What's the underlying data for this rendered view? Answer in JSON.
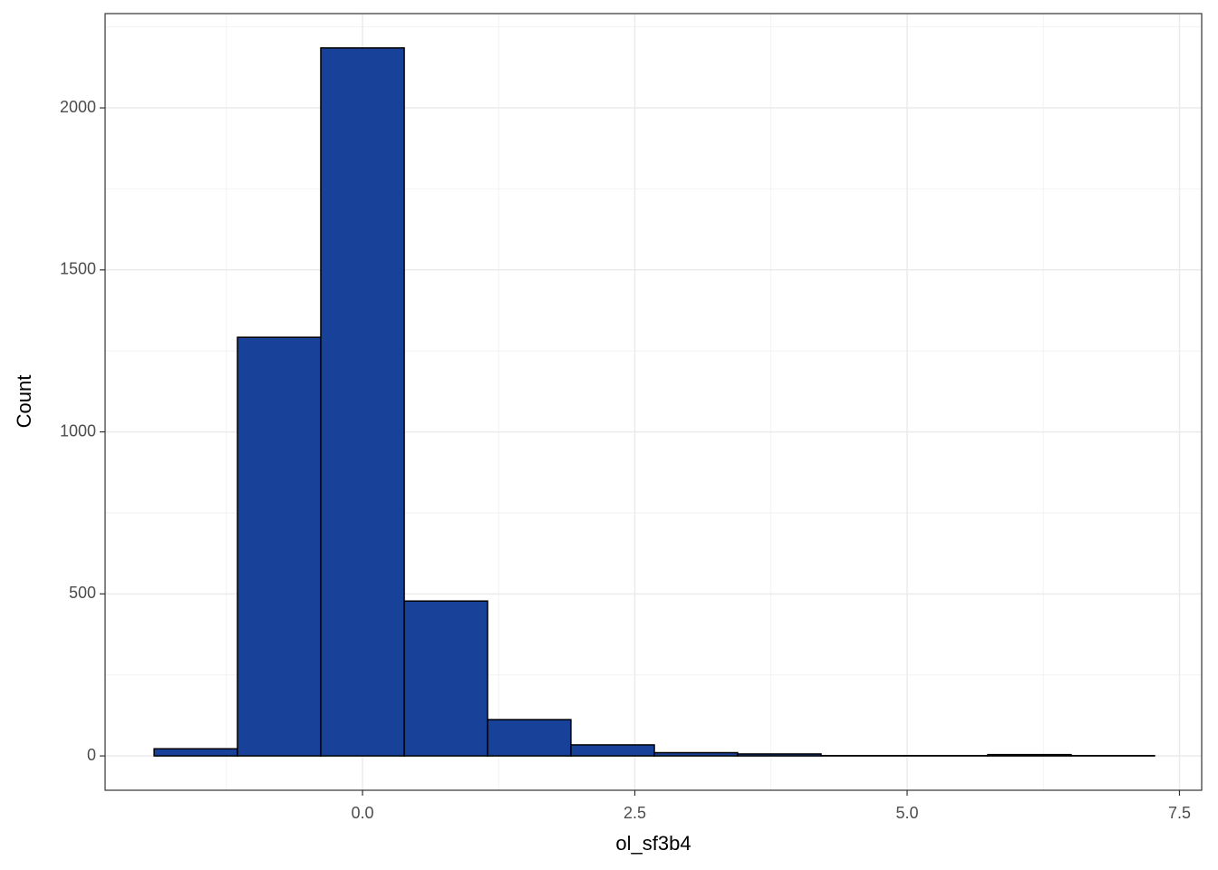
{
  "chart_data": {
    "type": "histogram",
    "x_label": "ol_sf3b4",
    "y_label": "Count",
    "bins": [
      -1.913,
      -1.148,
      -0.383,
      0.383,
      1.148,
      1.913,
      2.679,
      3.444,
      4.21,
      4.975,
      5.74,
      6.506,
      7.271
    ],
    "values": [
      22,
      1292,
      2185,
      478,
      112,
      34,
      10,
      6,
      1,
      1,
      4,
      1
    ],
    "color": "#18429a",
    "edge_color": "#000000",
    "xlim": [
      -2.363,
      7.704
    ],
    "ylim": [
      -106,
      2291
    ],
    "xticks": [
      {
        "value": 0,
        "label": "0.0"
      },
      {
        "value": 2.5,
        "label": "2.5"
      },
      {
        "value": 5,
        "label": "5.0"
      },
      {
        "value": 7.5,
        "label": "7.5"
      }
    ],
    "yticks": [
      0,
      500,
      1000,
      1500,
      2000
    ],
    "x_minor_ticks": [
      -1.25,
      1.25,
      3.75,
      6.25
    ],
    "y_minor_ticks": [
      250,
      750,
      1250,
      1750,
      2250
    ],
    "grid": true
  }
}
